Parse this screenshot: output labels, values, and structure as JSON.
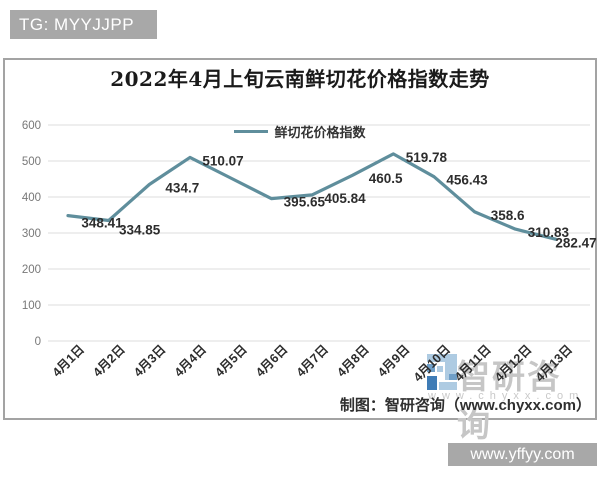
{
  "overlay": {
    "top_left_badge": "TG: MYYJJPP",
    "bottom_right_badge": "www.yffyy.com"
  },
  "chart": {
    "title": "2022年4月上旬云南鲜切花价格指数走势",
    "legend": "鲜切花价格指数",
    "caption": "制图：智研咨询（www.chyxx.com）",
    "watermark": {
      "brand": "智研咨询",
      "url": "www.chyxx.com",
      "logo": "zhiyan-pixel-logo"
    }
  },
  "chart_data": {
    "type": "line",
    "title": "2022年4月上旬云南鲜切花价格指数走势",
    "series_name": "鲜切花价格指数",
    "categories": [
      "4月1日",
      "4月2日",
      "4月3日",
      "4月4日",
      "4月5日",
      "4月6日",
      "4月7日",
      "4月8日",
      "4月9日",
      "4月10日",
      "4月11日",
      "4月12日",
      "4月13日"
    ],
    "values": [
      348.41,
      334.85,
      434.7,
      510.07,
      null,
      395.65,
      405.84,
      460.5,
      519.78,
      456.43,
      358.6,
      310.83,
      282.47
    ],
    "ylim": [
      0,
      600
    ],
    "yticks": [
      0,
      100,
      200,
      300,
      400,
      500,
      600
    ],
    "grid": true,
    "legend_position": "top-center",
    "line_color": "#5f8e9c",
    "grid_color": "#dcdcdc",
    "tick_label_color": "#787878",
    "data_label_color": "#2d2d2d"
  }
}
